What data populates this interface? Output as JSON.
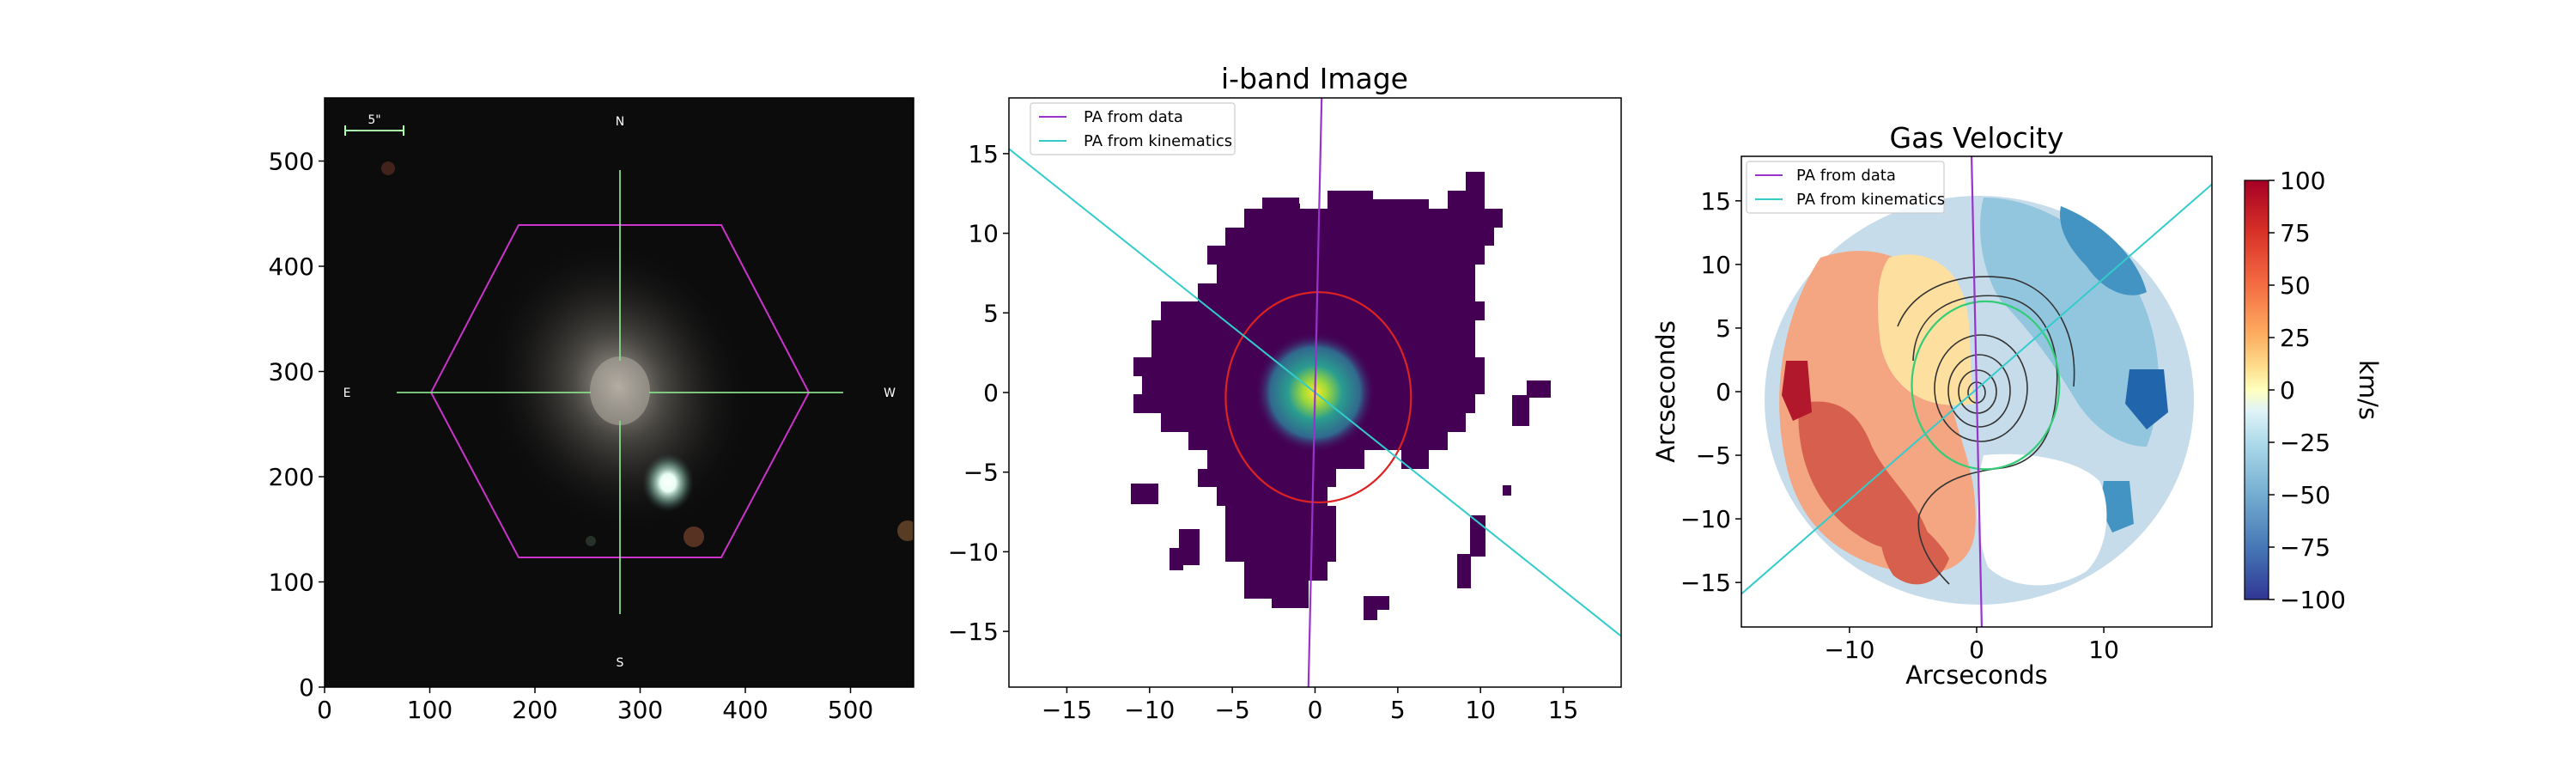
{
  "chart_data": [
    {
      "type": "image",
      "title": "",
      "xlim": [
        0,
        560
      ],
      "ylim": [
        560,
        0
      ],
      "xticks": [
        0,
        100,
        200,
        300,
        400,
        500
      ],
      "yticks": [
        0,
        100,
        200,
        300,
        400,
        500
      ],
      "compass": {
        "north": "N",
        "south": "S",
        "east": "E",
        "west": "W"
      },
      "scale_bar_label": "5\"",
      "hexagon_color": "#cc33cc",
      "crosshair_color": "#88dd88"
    },
    {
      "type": "heatmap",
      "title": "i-band Image",
      "xlim": [
        -18.5,
        18.5
      ],
      "ylim": [
        18.5,
        -18.5
      ],
      "xticks": [
        -15,
        -10,
        -5,
        0,
        5,
        10,
        15
      ],
      "yticks": [
        -15,
        -10,
        -5,
        0,
        5,
        10,
        15
      ],
      "legend": [
        {
          "name": "PA from data",
          "color": "#9933cc"
        },
        {
          "name": "PA from kinematics",
          "color": "#33cccc"
        }
      ],
      "pa_data_line": {
        "x": [
          -0.4,
          0.4
        ],
        "y": [
          -18.5,
          18.5
        ]
      },
      "pa_kin_line": {
        "x": [
          -18.5,
          18.5
        ],
        "y": [
          15.3,
          -15.3
        ]
      },
      "ellipse": {
        "cx": 0.2,
        "cy": -0.3,
        "rx": 5.6,
        "ry": 6.6,
        "color": "#dd2222"
      },
      "peak": {
        "x": 0,
        "y": 0
      }
    },
    {
      "type": "heatmap",
      "title": "Gas Velocity",
      "xlabel": "Arcseconds",
      "ylabel": "Arcseconds",
      "xlim": [
        -18.5,
        18.5
      ],
      "ylim": [
        -18.5,
        18.5
      ],
      "xticks": [
        -10,
        0,
        10
      ],
      "yticks": [
        -15,
        -10,
        -5,
        0,
        5,
        10,
        15
      ],
      "legend": [
        {
          "name": "PA from data",
          "color": "#9933cc"
        },
        {
          "name": "PA from kinematics",
          "color": "#33cccc"
        }
      ],
      "colorbar": {
        "label": "km/s",
        "range": [
          -100,
          100
        ],
        "ticks": [
          100,
          75,
          50,
          25,
          0,
          -25,
          -50,
          -75,
          -100
        ]
      },
      "ellipse": {
        "cx": 0.7,
        "cy": 0.5,
        "rx": 5.8,
        "ry": 6.6,
        "color": "#33cc77"
      }
    }
  ]
}
